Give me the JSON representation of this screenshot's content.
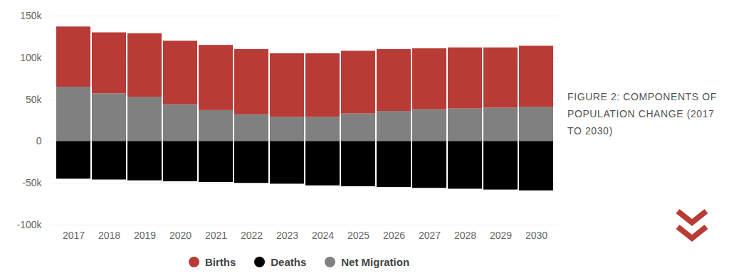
{
  "chart_data": {
    "type": "bar",
    "title": "FIGURE 2: COMPONENTS OF POPULATION CHANGE (2017 TO 2030)",
    "categories": [
      "2017",
      "2018",
      "2019",
      "2020",
      "2021",
      "2022",
      "2023",
      "2024",
      "2025",
      "2026",
      "2027",
      "2028",
      "2029",
      "2030"
    ],
    "series": [
      {
        "name": "Births",
        "color": "#b83b36",
        "values": [
          72000,
          73000,
          76000,
          76000,
          78000,
          78000,
          76000,
          76000,
          75000,
          74000,
          73000,
          73000,
          72000,
          73000
        ]
      },
      {
        "name": "Deaths",
        "color": "#000000",
        "values": [
          -45000,
          -46000,
          -47000,
          -48000,
          -49000,
          -50000,
          -51000,
          -53000,
          -54000,
          -55000,
          -56000,
          -57000,
          -58000,
          -59000
        ]
      },
      {
        "name": "Net Migration",
        "color": "#808080",
        "values": [
          65000,
          57000,
          53000,
          44000,
          37000,
          32000,
          29000,
          29000,
          33000,
          36000,
          38000,
          39000,
          40000,
          41000
        ]
      }
    ],
    "ylim": [
      -100000,
      150000
    ],
    "yticks": [
      {
        "value": -100000,
        "label": "-100k"
      },
      {
        "value": -50000,
        "label": "-50k"
      },
      0,
      {
        "value": 50000,
        "label": "50k"
      },
      {
        "value": 100000,
        "label": "100k"
      },
      {
        "value": 150000,
        "label": "150k"
      }
    ],
    "grid": true,
    "stacked": true,
    "legend": "bottom"
  }
}
